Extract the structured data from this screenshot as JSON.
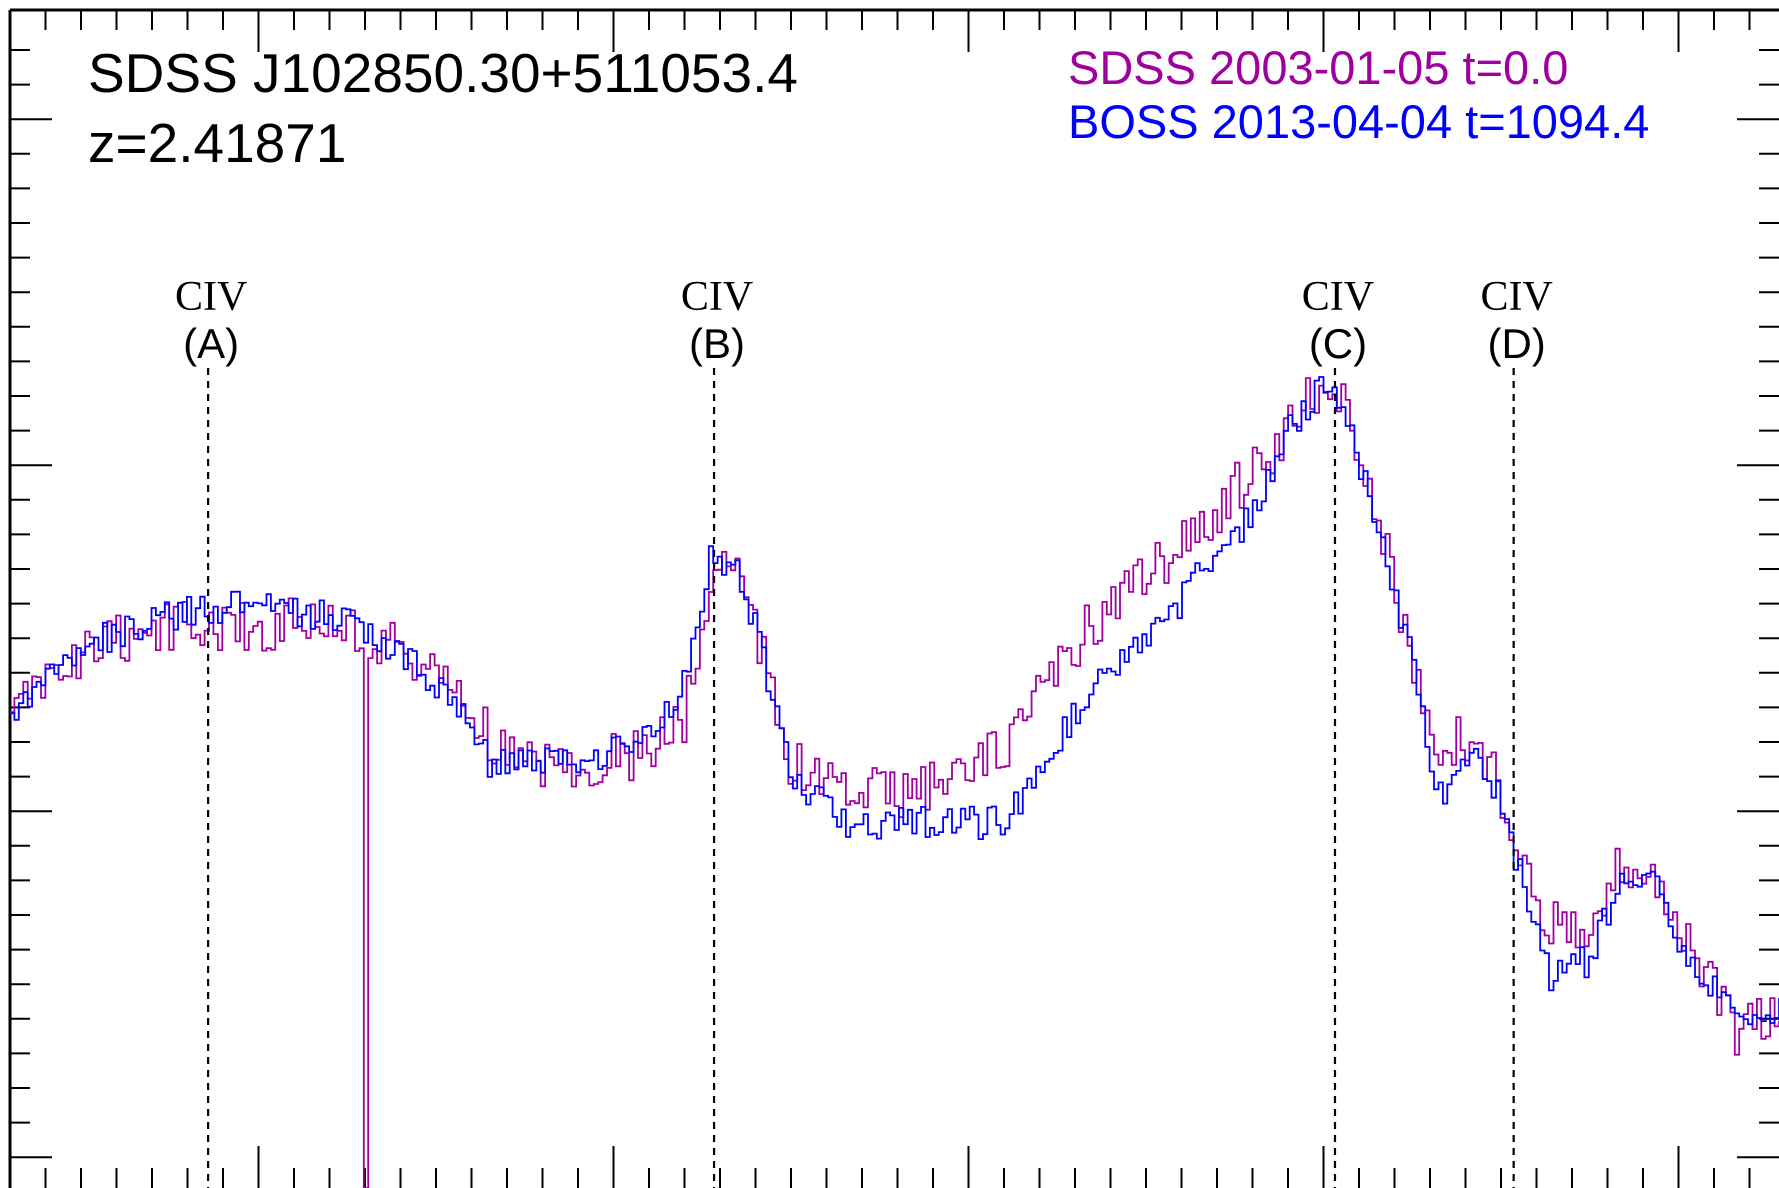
{
  "chart_data": {
    "type": "line",
    "title": "SDSS J102850.30+511053.4",
    "subtitle": "z=2.41871",
    "xlabel": "",
    "ylabel": "",
    "xlim": [
      0,
      1000
    ],
    "ylim": [
      0,
      1000
    ],
    "grid": false,
    "legend_position": "top-right",
    "series": [
      {
        "name": "SDSS 2003-01-05  t=0.0",
        "color": "#a000a0",
        "anchors": [
          [
            0,
            600
          ],
          [
            10,
            585
          ],
          [
            30,
            555
          ],
          [
            60,
            535
          ],
          [
            100,
            520
          ],
          [
            140,
            525
          ],
          [
            160,
            515
          ],
          [
            190,
            525
          ],
          [
            220,
            545
          ],
          [
            240,
            565
          ],
          [
            260,
            590
          ],
          [
            270,
            615
          ],
          [
            280,
            635
          ],
          [
            320,
            640
          ],
          [
            360,
            630
          ],
          [
            380,
            600
          ],
          [
            395,
            495
          ],
          [
            400,
            460
          ],
          [
            410,
            470
          ],
          [
            420,
            520
          ],
          [
            440,
            640
          ],
          [
            470,
            665
          ],
          [
            510,
            665
          ],
          [
            540,
            650
          ],
          [
            560,
            625
          ],
          [
            580,
            585
          ],
          [
            600,
            540
          ],
          [
            620,
            505
          ],
          [
            650,
            470
          ],
          [
            670,
            445
          ],
          [
            690,
            410
          ],
          [
            710,
            380
          ],
          [
            720,
            355
          ],
          [
            735,
            330
          ],
          [
            740,
            320
          ],
          [
            755,
            335
          ],
          [
            770,
            420
          ],
          [
            790,
            540
          ],
          [
            800,
            610
          ],
          [
            808,
            650
          ],
          [
            820,
            610
          ],
          [
            840,
            655
          ],
          [
            860,
            740
          ],
          [
            870,
            780
          ],
          [
            880,
            770
          ],
          [
            890,
            800
          ],
          [
            910,
            720
          ],
          [
            930,
            735
          ],
          [
            950,
            800
          ],
          [
            975,
            865
          ],
          [
            1000,
            850
          ]
        ],
        "spikes": [
          [
            200,
            1000
          ],
          [
            402,
            460
          ]
        ]
      },
      {
        "name": "BOSS 2013-04-04  t=1094.4",
        "color": "#0000ff",
        "anchors": [
          [
            0,
            600
          ],
          [
            10,
            585
          ],
          [
            30,
            545
          ],
          [
            60,
            530
          ],
          [
            100,
            510
          ],
          [
            140,
            505
          ],
          [
            160,
            510
          ],
          [
            190,
            520
          ],
          [
            220,
            545
          ],
          [
            240,
            570
          ],
          [
            260,
            610
          ],
          [
            270,
            640
          ],
          [
            320,
            640
          ],
          [
            360,
            620
          ],
          [
            380,
            575
          ],
          [
            395,
            465
          ],
          [
            410,
            470
          ],
          [
            420,
            520
          ],
          [
            440,
            650
          ],
          [
            470,
            690
          ],
          [
            510,
            690
          ],
          [
            540,
            690
          ],
          [
            560,
            690
          ],
          [
            580,
            650
          ],
          [
            600,
            600
          ],
          [
            620,
            565
          ],
          [
            650,
            525
          ],
          [
            670,
            480
          ],
          [
            690,
            455
          ],
          [
            710,
            400
          ],
          [
            720,
            360
          ],
          [
            735,
            330
          ],
          [
            740,
            315
          ],
          [
            755,
            340
          ],
          [
            770,
            430
          ],
          [
            790,
            545
          ],
          [
            800,
            620
          ],
          [
            808,
            670
          ],
          [
            820,
            625
          ],
          [
            840,
            665
          ],
          [
            860,
            770
          ],
          [
            870,
            820
          ],
          [
            880,
            800
          ],
          [
            890,
            810
          ],
          [
            910,
            740
          ],
          [
            930,
            745
          ],
          [
            950,
            810
          ],
          [
            975,
            850
          ],
          [
            1000,
            845
          ]
        ],
        "spikes": []
      }
    ],
    "absorption_markers": [
      {
        "label": "CIV",
        "id": "(A)",
        "x": 112
      },
      {
        "label": "CIV",
        "id": "(B)",
        "x": 398
      },
      {
        "label": "CIV",
        "id": "(C)",
        "x": 749
      },
      {
        "label": "CIV",
        "id": "(D)",
        "x": 850
      }
    ]
  }
}
